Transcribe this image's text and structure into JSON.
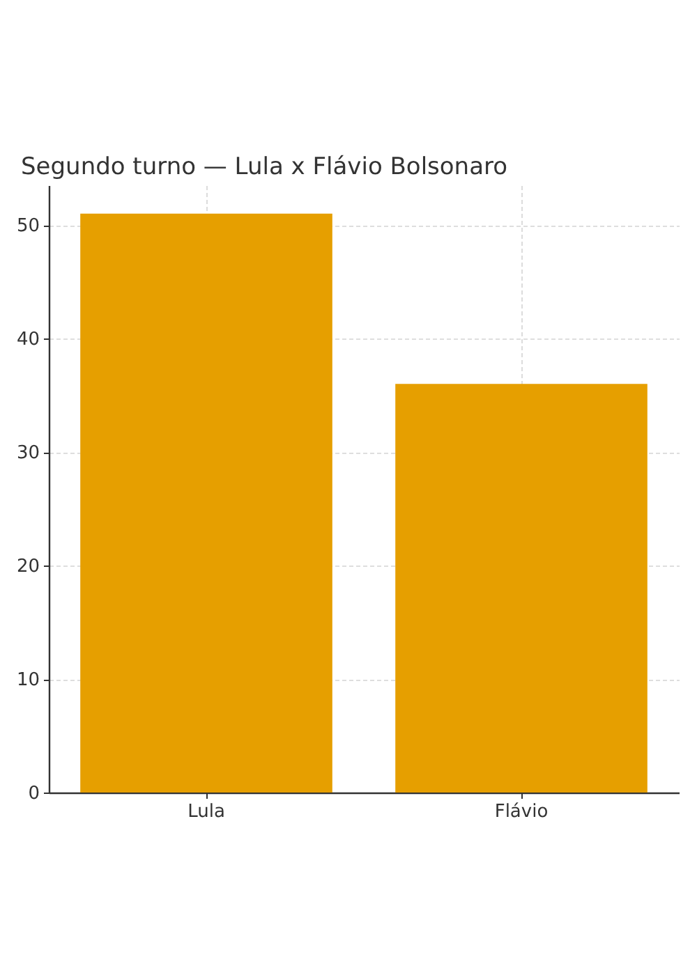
{
  "chart_data": {
    "type": "bar",
    "title": "Segundo turno — Lula x Flávio Bolsonaro",
    "categories": [
      "Lula",
      "Flávio"
    ],
    "values": [
      51,
      36
    ],
    "color": "#e69f00",
    "ylim": [
      0,
      53.5
    ],
    "yticks": [
      0,
      10,
      20,
      30,
      40,
      50
    ],
    "grid": true
  }
}
